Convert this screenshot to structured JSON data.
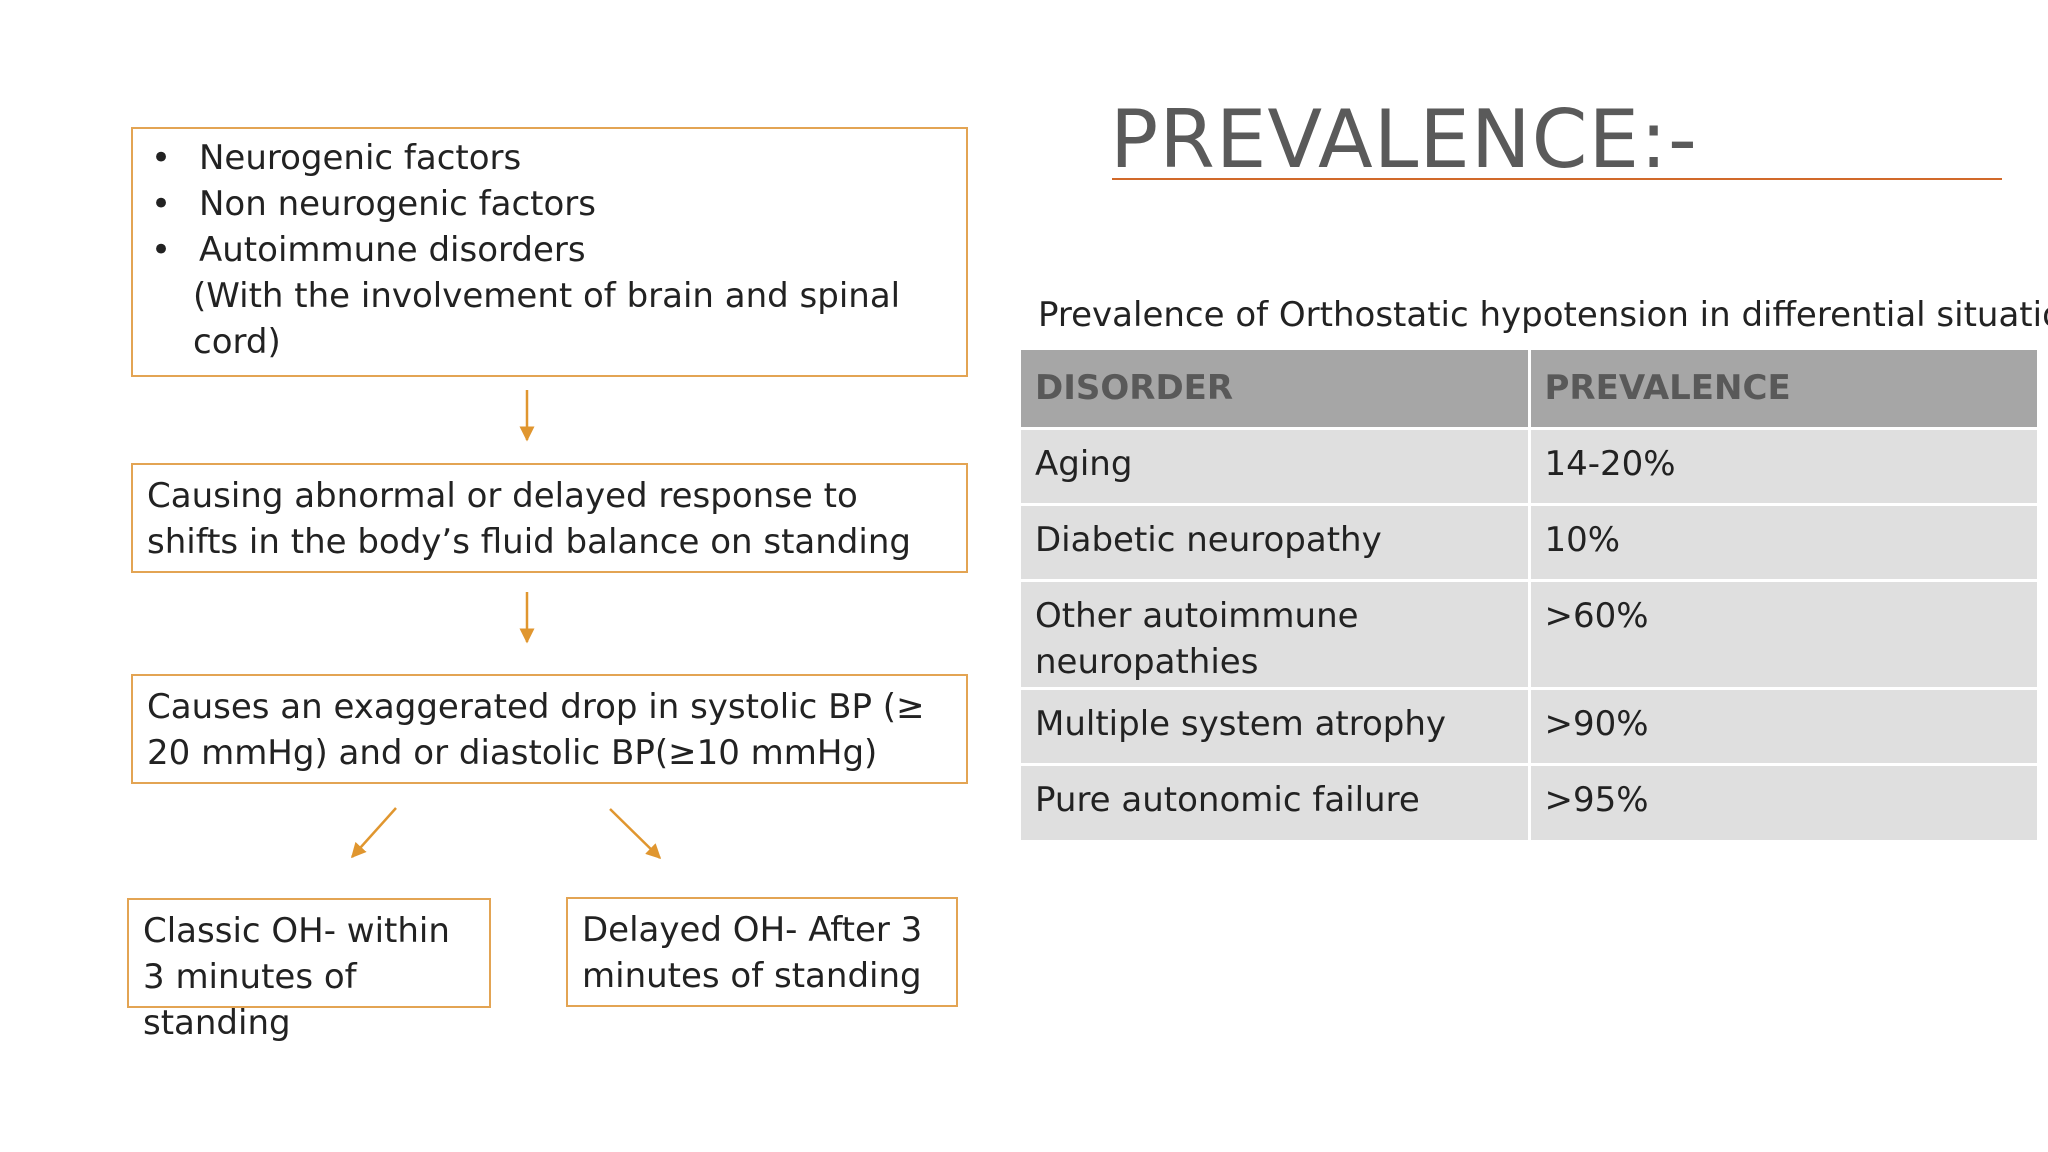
{
  "flowchart": {
    "causes": {
      "bullets": [
        "Neurogenic factors",
        "Non neurogenic factors",
        "Autoimmune disorders"
      ],
      "bullet_symbol": "•",
      "note": "(With the involvement of brain and spinal cord)"
    },
    "response": "Causing abnormal or delayed response to shifts in the body’s fluid balance on standing",
    "drop": "Causes an exaggerated drop in systolic BP (≥ 20 mmHg) and or diastolic BP(≥10 mmHg)",
    "classic": "Classic OH- within 3 minutes of standing",
    "delayed": "Delayed OH- After 3 minutes of standing",
    "accent_color": "#e3a453"
  },
  "prevalence": {
    "title": "PREVALENCE:-",
    "rule_color": "#d1692a",
    "caption": "Prevalence of Orthostatic hypotension in differential situations:-",
    "table": {
      "headers": [
        "DISORDER",
        "PREVALENCE"
      ],
      "rows": [
        [
          "Aging",
          "14-20%"
        ],
        [
          "Diabetic neuropathy",
          "10%"
        ],
        [
          "Other autoimmune neuropathies",
          ">60%"
        ],
        [
          "Multiple system atrophy",
          ">90%"
        ],
        [
          "Pure autonomic failure",
          ">95%"
        ]
      ],
      "header_bg": "#a6a6a6",
      "row_bg": "#dfdfdf"
    }
  }
}
